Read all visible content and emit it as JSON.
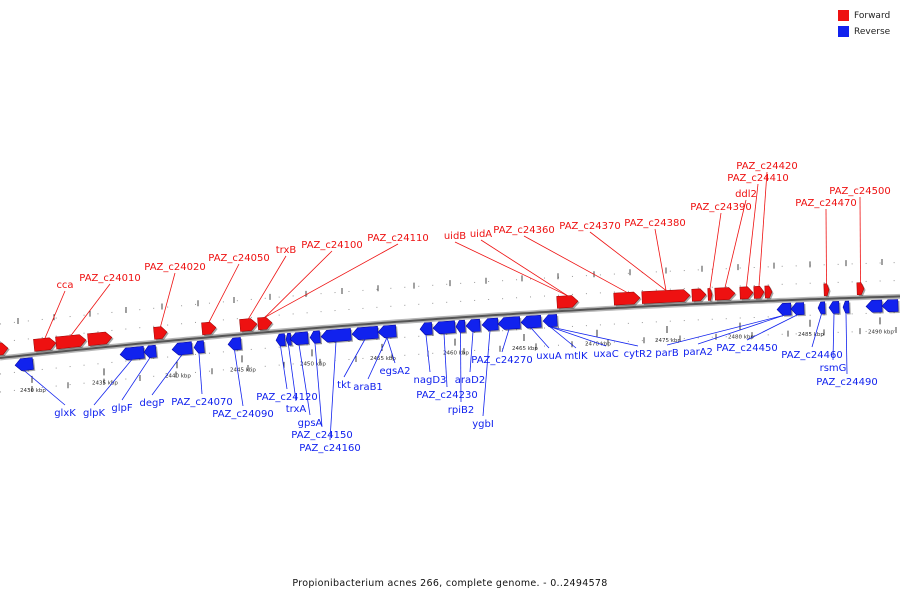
{
  "legend": {
    "forward": {
      "label": "Forward",
      "color": "#ee1111"
    },
    "reverse": {
      "label": "Reverse",
      "color": "#1122ee"
    }
  },
  "caption": "Propionibacterium acnes 266, complete genome. - 0..2494578",
  "scale": {
    "unit": "kbp",
    "ticks": [
      "2430 kbp",
      "2435 kbp",
      "2440 kbp",
      "2445 kbp",
      "2450 kbp",
      "2455 kbp",
      "2460 kbp",
      "2465 kbp",
      "2470 kbp",
      "2475 kbp",
      "2480 kbp",
      "2485 kbp",
      "2490 kbp"
    ]
  },
  "forward_genes": [
    "cca",
    "PAZ_c24010",
    "PAZ_c24020",
    "PAZ_c24050",
    "trxB",
    "PAZ_c24100",
    "PAZ_c24110",
    "uidB",
    "uidA",
    "PAZ_c24360",
    "PAZ_c24370",
    "PAZ_c24380",
    "PAZ_c24390",
    "ddl2",
    "PAZ_c24410",
    "PAZ_c24420",
    "PAZ_c24470",
    "PAZ_c24500"
  ],
  "reverse_genes": [
    "glxK",
    "glpK",
    "glpF",
    "degP",
    "PAZ_c24070",
    "PAZ_c24090",
    "PAZ_c24120",
    "trxA",
    "gpsA",
    "PAZ_c24150",
    "PAZ_c24160",
    "tkt",
    "araB1",
    "egsA2",
    "nagD3",
    "PAZ_c24230",
    "rpiB2",
    "araD2",
    "ygbI",
    "PAZ_c24270",
    "uxuA",
    "mtlK",
    "uxaC",
    "cytR2",
    "parB",
    "parA2",
    "PAZ_c24450",
    "PAZ_c24460",
    "rsmG",
    "PAZ_c24490"
  ]
}
